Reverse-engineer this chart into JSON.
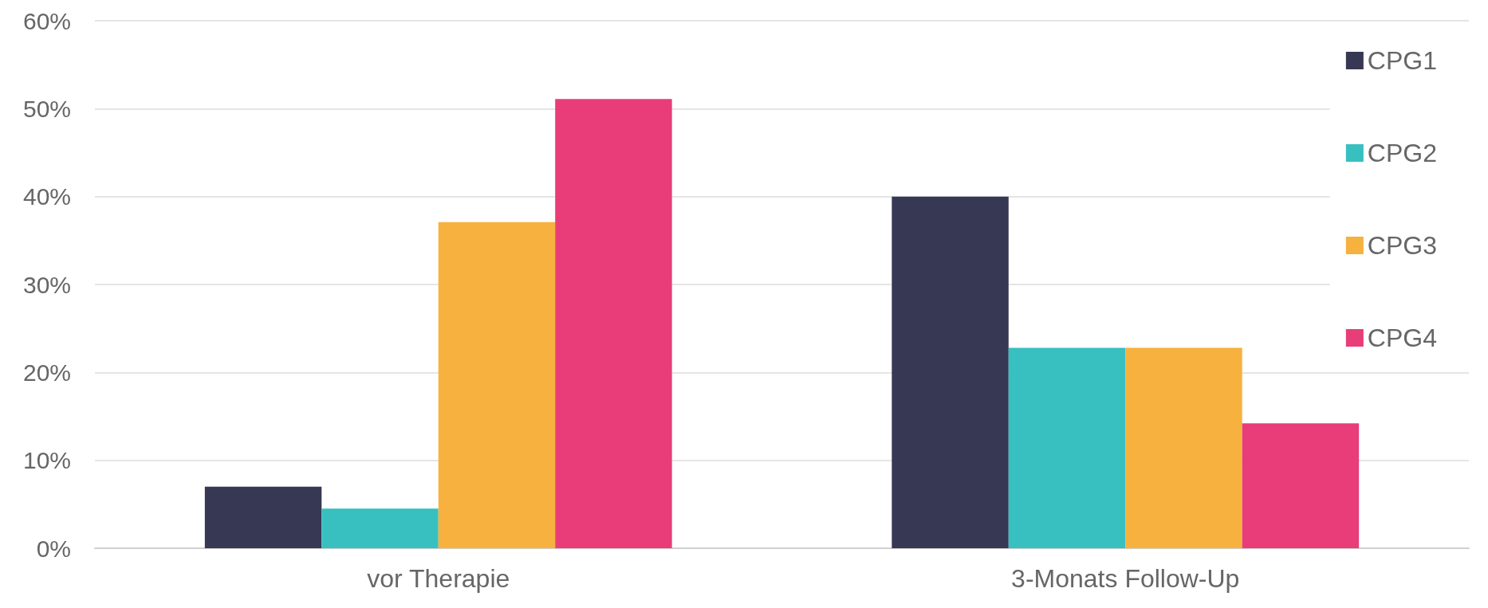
{
  "chart_data": {
    "type": "bar",
    "categories": [
      "vor Therapie",
      "3-Monats Follow-Up"
    ],
    "series": [
      {
        "name": "CPG1",
        "color": "#373853",
        "values": [
          7,
          40
        ]
      },
      {
        "name": "CPG2",
        "color": "#38bfc0",
        "values": [
          4.5,
          22.8
        ]
      },
      {
        "name": "CPG3",
        "color": "#f7b13e",
        "values": [
          37.1,
          22.8
        ]
      },
      {
        "name": "CPG4",
        "color": "#e83d79",
        "values": [
          51.1,
          14.2
        ]
      }
    ],
    "ylim": [
      0,
      60
    ],
    "yticks": [
      {
        "value": 0,
        "label": "0%"
      },
      {
        "value": 10,
        "label": "10%"
      },
      {
        "value": 20,
        "label": "20%"
      },
      {
        "value": 30,
        "label": "30%"
      },
      {
        "value": 40,
        "label": "40%"
      },
      {
        "value": 50,
        "label": "50%"
      },
      {
        "value": 60,
        "label": "60%"
      }
    ],
    "grid": "y",
    "legend": "top right"
  }
}
